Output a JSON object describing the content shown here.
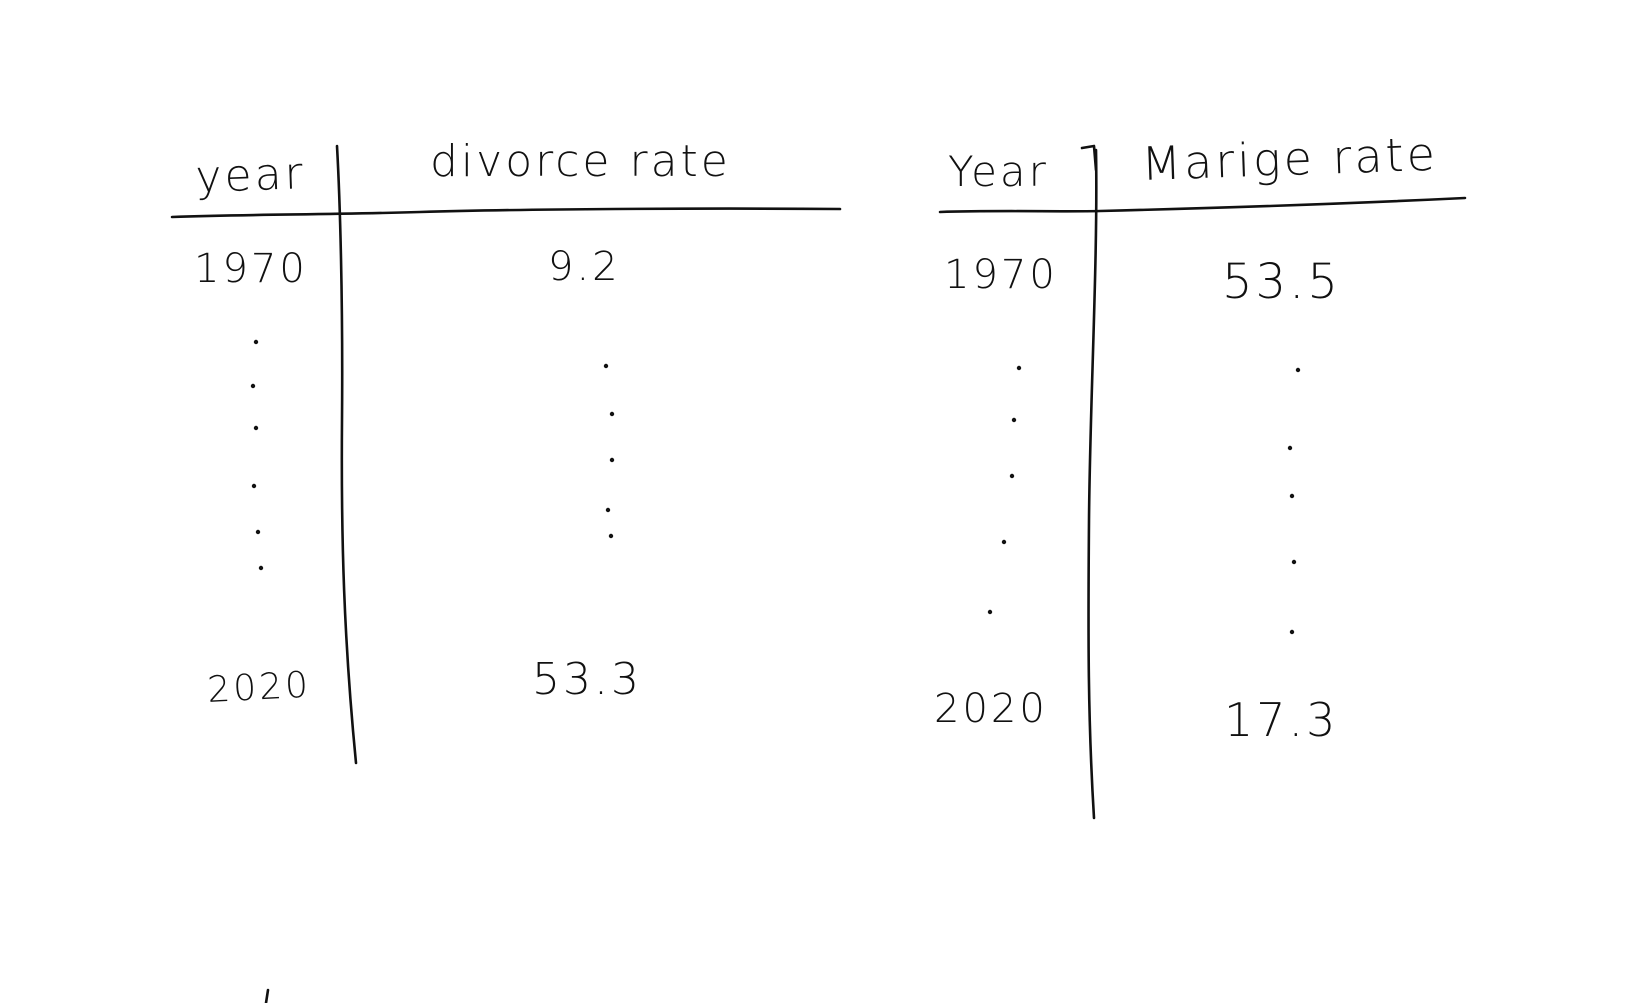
{
  "chart_data": [
    {
      "type": "table",
      "columns": [
        "year",
        "divorce rate"
      ],
      "rows": [
        {
          "year": "1970",
          "value": "9.2"
        },
        {
          "year": "2020",
          "value": "53.3"
        }
      ]
    },
    {
      "type": "table",
      "columns": [
        "Year",
        "Marige rate"
      ],
      "rows": [
        {
          "year": "1970",
          "value": "53.5"
        },
        {
          "year": "2020",
          "value": "17.3"
        }
      ]
    }
  ]
}
